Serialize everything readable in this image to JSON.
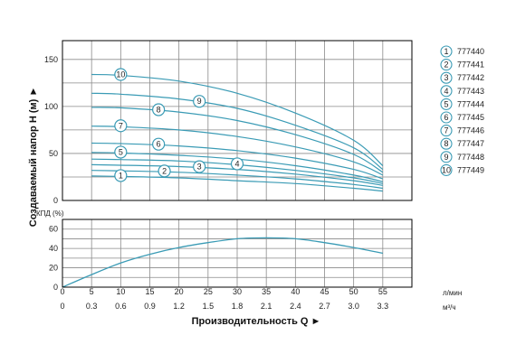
{
  "chart_data": [
    {
      "type": "line",
      "ylabel": "Создаваемый напор H (м) ►",
      "ylim": [
        0,
        170
      ],
      "yticks": [
        0,
        50,
        100,
        150
      ],
      "xlim": [
        0,
        60
      ],
      "grid": true,
      "legend_position": "right",
      "series_color": "#3a9bb5",
      "series": [
        {
          "name": "777440",
          "marker": "1",
          "x": [
            5,
            10,
            20,
            30,
            40,
            50,
            55
          ],
          "y": [
            26,
            25.5,
            24,
            21,
            18,
            13,
            10
          ]
        },
        {
          "name": "777441",
          "marker": "2",
          "x": [
            5,
            10,
            20,
            30,
            40,
            50,
            55
          ],
          "y": [
            32,
            31.5,
            30,
            27,
            23,
            17,
            13
          ]
        },
        {
          "name": "777442",
          "marker": "3",
          "x": [
            5,
            10,
            20,
            30,
            40,
            50,
            55
          ],
          "y": [
            38,
            37.5,
            36,
            33,
            28,
            21,
            16
          ]
        },
        {
          "name": "777443",
          "marker": "4",
          "x": [
            5,
            10,
            20,
            30,
            40,
            50,
            55
          ],
          "y": [
            44,
            43.5,
            42,
            38,
            32,
            24,
            18
          ]
        },
        {
          "name": "777444",
          "marker": "5",
          "x": [
            5,
            10,
            20,
            30,
            40,
            50,
            55
          ],
          "y": [
            51,
            50.5,
            48,
            44,
            37,
            27,
            20
          ]
        },
        {
          "name": "777445",
          "marker": "6",
          "x": [
            5,
            10,
            20,
            30,
            40,
            50,
            55
          ],
          "y": [
            61,
            60.5,
            58,
            53,
            45,
            33,
            23
          ]
        },
        {
          "name": "777446",
          "marker": "7",
          "x": [
            5,
            10,
            20,
            30,
            40,
            50,
            55
          ],
          "y": [
            79,
            78.5,
            75,
            68,
            57,
            41,
            27
          ]
        },
        {
          "name": "777447",
          "marker": "8",
          "x": [
            5,
            10,
            20,
            30,
            40,
            50,
            55
          ],
          "y": [
            99,
            98.5,
            94,
            85,
            70,
            49,
            30
          ]
        },
        {
          "name": "777448",
          "marker": "9",
          "x": [
            5,
            10,
            20,
            30,
            40,
            50,
            55
          ],
          "y": [
            114,
            113,
            108,
            98,
            80,
            56,
            33
          ]
        },
        {
          "name": "777449",
          "marker": "10",
          "x": [
            5,
            10,
            20,
            30,
            40,
            50,
            55
          ],
          "y": [
            134,
            133,
            127,
            114,
            93,
            64,
            37
          ]
        }
      ]
    },
    {
      "type": "line",
      "ylabel": "КПД (%)",
      "ylim": [
        0,
        70
      ],
      "yticks": [
        0,
        20,
        40,
        60
      ],
      "xlabel": "Производительность Q ►",
      "xlim": [
        0,
        60
      ],
      "xticks_lmin": [
        "0",
        "5",
        "10",
        "15",
        "20",
        "25",
        "30",
        "35",
        "40",
        "45",
        "50",
        "55"
      ],
      "xticks_m3h": [
        "0",
        "0.3",
        "0.6",
        "0.9",
        "1.2",
        "1.5",
        "1.8",
        "2.1",
        "2.4",
        "2.7",
        "3.0",
        "3.3"
      ],
      "unit_lmin": "л/мин",
      "unit_m3h": "м³/ч",
      "grid": true,
      "series_color": "#3a9bb5",
      "series": [
        {
          "x": [
            0,
            5,
            10,
            15,
            20,
            25,
            30,
            35,
            40,
            45,
            50,
            55
          ],
          "y": [
            0,
            13,
            25,
            34,
            41,
            46,
            50,
            51,
            50,
            46,
            41,
            35
          ]
        }
      ]
    }
  ]
}
